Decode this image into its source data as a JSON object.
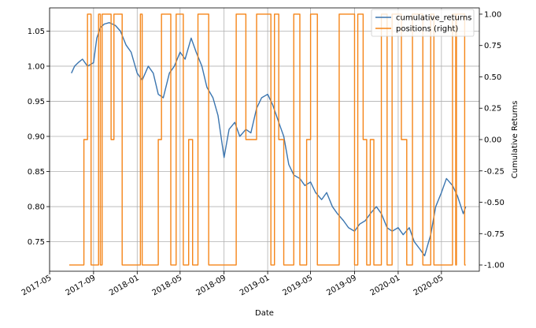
{
  "chart_data": {
    "type": "line",
    "title": "",
    "xlabel": "Date",
    "ylabel_left": "",
    "ylabel_right": "Cumulative Returns",
    "grid": true,
    "legend_placement": "top-right",
    "x_tick_labels": [
      "2017-05",
      "2017-09",
      "2018-01",
      "2018-05",
      "2018-09",
      "2019-01",
      "2019-05",
      "2019-09",
      "2020-01",
      "2020-05"
    ],
    "y_left_ticks": [
      "0.75",
      "0.80",
      "0.85",
      "0.90",
      "0.95",
      "1.00",
      "1.05"
    ],
    "y_right_ticks": [
      "-1.00",
      "-0.75",
      "-0.50",
      "-0.25",
      "0.00",
      "0.25",
      "0.50",
      "0.75",
      "1.00"
    ],
    "xlim": [
      "2017-05-01",
      "2020-08-15"
    ],
    "ylim_left": [
      0.708,
      1.083
    ],
    "ylim_right": [
      -1.05,
      1.05
    ],
    "series": [
      {
        "name": "cumulative_returns",
        "axis": "left",
        "color": "#3b75af",
        "points": [
          [
            "2017-07-01",
            0.99
          ],
          [
            "2017-07-10",
            1.0
          ],
          [
            "2017-07-20",
            1.005
          ],
          [
            "2017-08-01",
            1.01
          ],
          [
            "2017-08-15",
            1.0
          ],
          [
            "2017-09-01",
            1.005
          ],
          [
            "2017-09-10",
            1.04
          ],
          [
            "2017-09-20",
            1.055
          ],
          [
            "2017-10-01",
            1.06
          ],
          [
            "2017-10-15",
            1.062
          ],
          [
            "2017-11-01",
            1.058
          ],
          [
            "2017-11-15",
            1.05
          ],
          [
            "2017-12-01",
            1.03
          ],
          [
            "2017-12-15",
            1.02
          ],
          [
            "2018-01-01",
            0.99
          ],
          [
            "2018-01-15",
            0.98
          ],
          [
            "2018-02-01",
            1.0
          ],
          [
            "2018-02-15",
            0.99
          ],
          [
            "2018-03-01",
            0.96
          ],
          [
            "2018-03-15",
            0.955
          ],
          [
            "2018-04-01",
            0.99
          ],
          [
            "2018-04-15",
            1.0
          ],
          [
            "2018-05-01",
            1.02
          ],
          [
            "2018-05-15",
            1.01
          ],
          [
            "2018-06-01",
            1.04
          ],
          [
            "2018-06-15",
            1.02
          ],
          [
            "2018-07-01",
            1.0
          ],
          [
            "2018-07-15",
            0.97
          ],
          [
            "2018-08-01",
            0.955
          ],
          [
            "2018-08-15",
            0.93
          ],
          [
            "2018-09-01",
            0.87
          ],
          [
            "2018-09-15",
            0.91
          ],
          [
            "2018-10-01",
            0.92
          ],
          [
            "2018-10-15",
            0.9
          ],
          [
            "2018-11-01",
            0.91
          ],
          [
            "2018-11-15",
            0.905
          ],
          [
            "2018-12-01",
            0.94
          ],
          [
            "2018-12-15",
            0.955
          ],
          [
            "2019-01-01",
            0.96
          ],
          [
            "2019-01-15",
            0.945
          ],
          [
            "2019-02-01",
            0.92
          ],
          [
            "2019-02-15",
            0.9
          ],
          [
            "2019-03-01",
            0.86
          ],
          [
            "2019-03-15",
            0.845
          ],
          [
            "2019-04-01",
            0.84
          ],
          [
            "2019-04-15",
            0.83
          ],
          [
            "2019-05-01",
            0.835
          ],
          [
            "2019-05-15",
            0.82
          ],
          [
            "2019-06-01",
            0.81
          ],
          [
            "2019-06-15",
            0.82
          ],
          [
            "2019-07-01",
            0.8
          ],
          [
            "2019-07-15",
            0.79
          ],
          [
            "2019-08-01",
            0.78
          ],
          [
            "2019-08-15",
            0.77
          ],
          [
            "2019-09-01",
            0.765
          ],
          [
            "2019-09-15",
            0.775
          ],
          [
            "2019-10-01",
            0.78
          ],
          [
            "2019-10-15",
            0.79
          ],
          [
            "2019-11-01",
            0.8
          ],
          [
            "2019-11-15",
            0.79
          ],
          [
            "2019-12-01",
            0.77
          ],
          [
            "2019-12-15",
            0.765
          ],
          [
            "2020-01-01",
            0.77
          ],
          [
            "2020-01-15",
            0.76
          ],
          [
            "2020-02-01",
            0.77
          ],
          [
            "2020-02-15",
            0.75
          ],
          [
            "2020-03-01",
            0.74
          ],
          [
            "2020-03-15",
            0.73
          ],
          [
            "2020-04-01",
            0.76
          ],
          [
            "2020-04-15",
            0.8
          ],
          [
            "2020-05-01",
            0.82
          ],
          [
            "2020-05-15",
            0.84
          ],
          [
            "2020-06-01",
            0.83
          ],
          [
            "2020-06-15",
            0.815
          ],
          [
            "2020-07-01",
            0.79
          ],
          [
            "2020-07-08",
            0.8
          ]
        ]
      },
      {
        "name": "positions (right)",
        "axis": "right",
        "color": "#f58518",
        "points": [
          [
            "2017-06-25",
            -1
          ],
          [
            "2017-08-05",
            -1
          ],
          [
            "2017-08-05",
            0
          ],
          [
            "2017-08-15",
            0
          ],
          [
            "2017-08-15",
            1
          ],
          [
            "2017-08-25",
            1
          ],
          [
            "2017-08-25",
            -1
          ],
          [
            "2017-09-15",
            -1
          ],
          [
            "2017-09-15",
            1
          ],
          [
            "2017-09-20",
            1
          ],
          [
            "2017-09-20",
            -1
          ],
          [
            "2017-09-25",
            -1
          ],
          [
            "2017-09-25",
            1
          ],
          [
            "2017-10-20",
            1
          ],
          [
            "2017-10-20",
            0
          ],
          [
            "2017-10-28",
            0
          ],
          [
            "2017-10-28",
            1
          ],
          [
            "2017-11-20",
            1
          ],
          [
            "2017-11-20",
            -1
          ],
          [
            "2018-01-10",
            -1
          ],
          [
            "2018-01-10",
            1
          ],
          [
            "2018-01-15",
            1
          ],
          [
            "2018-01-15",
            -1
          ],
          [
            "2018-03-01",
            -1
          ],
          [
            "2018-03-01",
            0
          ],
          [
            "2018-03-10",
            0
          ],
          [
            "2018-03-10",
            1
          ],
          [
            "2018-04-05",
            1
          ],
          [
            "2018-04-05",
            -1
          ],
          [
            "2018-04-20",
            -1
          ],
          [
            "2018-04-20",
            1
          ],
          [
            "2018-05-10",
            1
          ],
          [
            "2018-05-10",
            -1
          ],
          [
            "2018-05-25",
            -1
          ],
          [
            "2018-05-25",
            0
          ],
          [
            "2018-06-05",
            0
          ],
          [
            "2018-06-05",
            -1
          ],
          [
            "2018-06-20",
            -1
          ],
          [
            "2018-06-20",
            1
          ],
          [
            "2018-07-20",
            1
          ],
          [
            "2018-07-20",
            -1
          ],
          [
            "2018-10-05",
            -1
          ],
          [
            "2018-10-05",
            1
          ],
          [
            "2018-11-01",
            1
          ],
          [
            "2018-11-01",
            0
          ],
          [
            "2018-12-01",
            0
          ],
          [
            "2018-12-01",
            1
          ],
          [
            "2019-01-10",
            1
          ],
          [
            "2019-01-10",
            -1
          ],
          [
            "2019-01-20",
            -1
          ],
          [
            "2019-01-20",
            1
          ],
          [
            "2019-02-01",
            1
          ],
          [
            "2019-02-01",
            0
          ],
          [
            "2019-02-15",
            0
          ],
          [
            "2019-02-15",
            -1
          ],
          [
            "2019-03-15",
            -1
          ],
          [
            "2019-03-15",
            1
          ],
          [
            "2019-04-01",
            1
          ],
          [
            "2019-04-01",
            -1
          ],
          [
            "2019-04-20",
            -1
          ],
          [
            "2019-04-20",
            0
          ],
          [
            "2019-05-01",
            0
          ],
          [
            "2019-05-01",
            1
          ],
          [
            "2019-05-20",
            1
          ],
          [
            "2019-05-20",
            -1
          ],
          [
            "2019-07-20",
            -1
          ],
          [
            "2019-07-20",
            1
          ],
          [
            "2019-09-01",
            1
          ],
          [
            "2019-09-01",
            -1
          ],
          [
            "2019-09-10",
            -1
          ],
          [
            "2019-09-10",
            1
          ],
          [
            "2019-09-25",
            1
          ],
          [
            "2019-09-25",
            0
          ],
          [
            "2019-10-05",
            0
          ],
          [
            "2019-10-05",
            -1
          ],
          [
            "2019-10-15",
            -1
          ],
          [
            "2019-10-15",
            0
          ],
          [
            "2019-10-25",
            0
          ],
          [
            "2019-10-25",
            -1
          ],
          [
            "2019-11-15",
            -1
          ],
          [
            "2019-11-15",
            1
          ],
          [
            "2019-12-01",
            1
          ],
          [
            "2019-12-01",
            -1
          ],
          [
            "2019-12-15",
            -1
          ],
          [
            "2019-12-15",
            1
          ],
          [
            "2020-01-10",
            1
          ],
          [
            "2020-01-10",
            0
          ],
          [
            "2020-01-25",
            0
          ],
          [
            "2020-01-25",
            -1
          ],
          [
            "2020-02-10",
            -1
          ],
          [
            "2020-02-10",
            1
          ],
          [
            "2020-03-10",
            1
          ],
          [
            "2020-03-10",
            -1
          ],
          [
            "2020-04-01",
            -1
          ],
          [
            "2020-04-01",
            1
          ],
          [
            "2020-04-10",
            1
          ],
          [
            "2020-04-10",
            -1
          ],
          [
            "2020-06-01",
            -1
          ],
          [
            "2020-06-01",
            1
          ],
          [
            "2020-06-10",
            1
          ],
          [
            "2020-06-10",
            -1
          ],
          [
            "2020-06-12",
            -1
          ],
          [
            "2020-06-12",
            1
          ],
          [
            "2020-07-05",
            1
          ],
          [
            "2020-07-05",
            -1
          ],
          [
            "2020-07-08",
            -1
          ]
        ]
      }
    ]
  }
}
